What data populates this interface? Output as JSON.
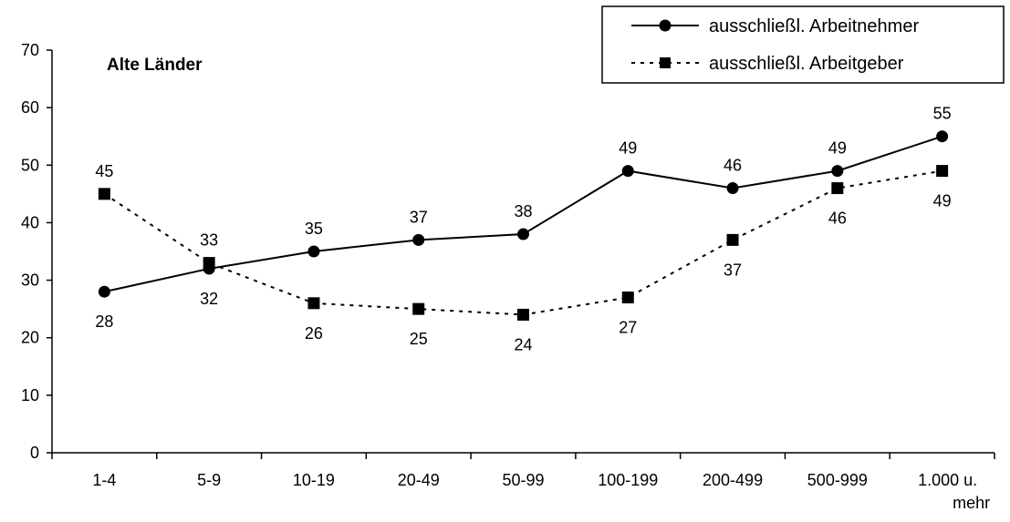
{
  "chart_data": {
    "type": "line",
    "subtitle": "Alte Länder",
    "categories": [
      "1-4",
      "5-9",
      "10-19",
      "20-49",
      "50-99",
      "100-199",
      "200-499",
      "500-999",
      "1.000 u. mehr"
    ],
    "series": [
      {
        "name": "ausschließl. Arbeitnehmer",
        "values": [
          28,
          32,
          35,
          37,
          38,
          49,
          46,
          49,
          55
        ],
        "line_style": "solid",
        "marker": "circle"
      },
      {
        "name": "ausschließl. Arbeitgeber",
        "values": [
          45,
          33,
          26,
          25,
          24,
          27,
          37,
          46,
          49
        ],
        "line_style": "dotted",
        "marker": "square"
      }
    ],
    "yticks": [
      0,
      10,
      20,
      30,
      40,
      50,
      60,
      70
    ],
    "ylim": [
      0,
      70
    ],
    "grid": false,
    "legend_position": "top-right",
    "xlabel": "",
    "ylabel": ""
  }
}
